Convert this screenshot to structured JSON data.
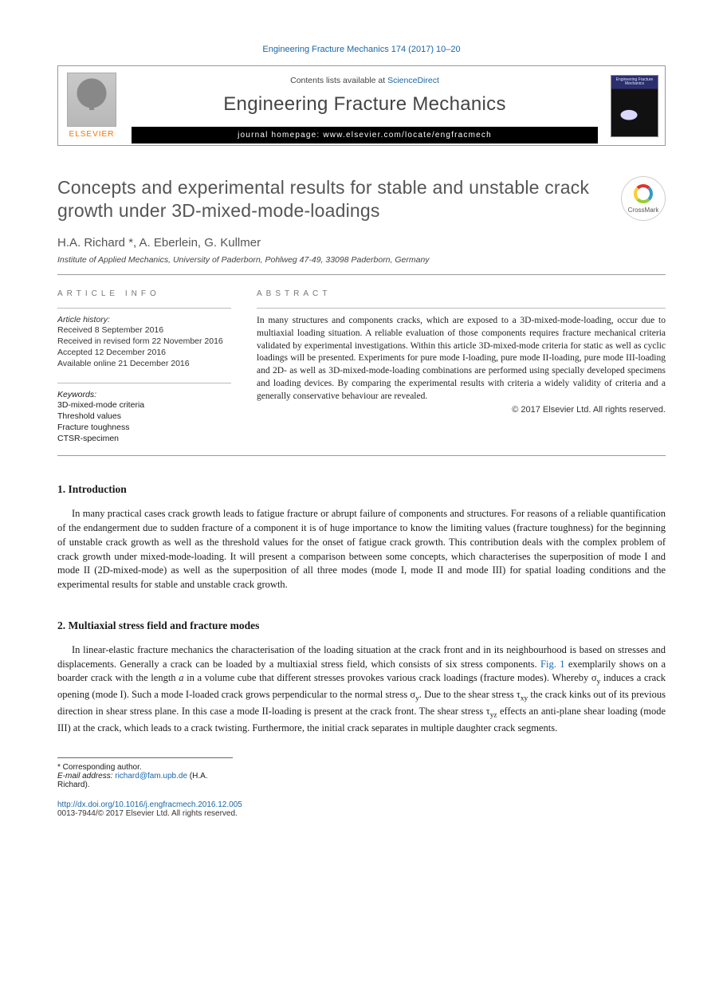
{
  "citation": "Engineering Fracture Mechanics 174 (2017) 10–20",
  "header": {
    "contents_prefix": "Contents lists available at ",
    "contents_link": "ScienceDirect",
    "journal": "Engineering Fracture Mechanics",
    "homepage_label": "journal homepage: ",
    "homepage_url": "www.elsevier.com/locate/engfracmech",
    "elsevier": "ELSEVIER",
    "cover_text": "Engineering Fracture Mechanics"
  },
  "title": "Concepts and experimental results for stable and unstable crack growth under 3D-mixed-mode-loadings",
  "crossmark": "CrossMark",
  "authors": "H.A. Richard *, A. Eberlein, G. Kullmer",
  "affiliation": "Institute of Applied Mechanics, University of Paderborn, Pohlweg 47-49, 33098 Paderborn, Germany",
  "info": {
    "head": "ARTICLE INFO",
    "history_label": "Article history:",
    "history": [
      "Received 8 September 2016",
      "Received in revised form 22 November 2016",
      "Accepted 12 December 2016",
      "Available online 21 December 2016"
    ],
    "keywords_label": "Keywords:",
    "keywords": [
      "3D-mixed-mode criteria",
      "Threshold values",
      "Fracture toughness",
      "CTSR-specimen"
    ]
  },
  "abstract": {
    "head": "ABSTRACT",
    "text": "In many structures and components cracks, which are exposed to a 3D-mixed-mode-loading, occur due to multiaxial loading situation. A reliable evaluation of those components requires fracture mechanical criteria validated by experimental investigations. Within this article 3D-mixed-mode criteria for static as well as cyclic loadings will be presented. Experiments for pure mode I-loading, pure mode II-loading, pure mode III-loading and 2D- as well as 3D-mixed-mode-loading combinations are performed using specially developed specimens and loading devices. By comparing the experimental results with criteria a widely validity of criteria and a generally conservative behaviour are revealed.",
    "copyright": "© 2017 Elsevier Ltd. All rights reserved."
  },
  "sections": {
    "s1": {
      "head": "1. Introduction",
      "p1": "In many practical cases crack growth leads to fatigue fracture or abrupt failure of components and structures. For reasons of a reliable quantification of the endangerment due to sudden fracture of a component it is of huge importance to know the limiting values (fracture toughness) for the beginning of unstable crack growth as well as the threshold values for the onset of fatigue crack growth. This contribution deals with the complex problem of crack growth under mixed-mode-loading. It will present a comparison between some concepts, which characterises the superposition of mode I and mode II (2D-mixed-mode) as well as the superposition of all three modes (mode I, mode II and mode III) for spatial loading conditions and the experimental results for stable and unstable crack growth."
    },
    "s2": {
      "head": "2. Multiaxial stress field and fracture modes",
      "p1a": "In linear-elastic fracture mechanics the characterisation of the loading situation at the crack front and in its neighbourhood is based on stresses and displacements. Generally a crack can be loaded by a multiaxial stress field, which consists of six stress components. ",
      "figref": "Fig. 1",
      "p1b": " exemplarily shows on a boarder crack with the length ",
      "var_a": "a",
      "p1c": " in a volume cube that different stresses provokes various crack loadings (fracture modes). Whereby σ",
      "sub_y1": "y",
      "p1d": " induces a crack opening (mode I). Such a mode I-loaded crack grows perpendicular to the normal stress σ",
      "sub_y2": "y",
      "p1e": ". Due to the shear stress τ",
      "sub_xy": "xy",
      "p1f": " the crack kinks out of its previous direction in shear stress plane. In this case a mode II-loading is present at the crack front. The shear stress τ",
      "sub_yz": "yz",
      "p1g": " effects an anti-plane shear loading (mode III) at the crack, which leads to a crack twisting. Furthermore, the initial crack separates in multiple daughter crack segments."
    }
  },
  "footnote": {
    "corr": "* Corresponding author.",
    "email_label": "E-mail address: ",
    "email": "richard@fam.upb.de",
    "email_suffix": " (H.A. Richard)."
  },
  "doi": {
    "url": "http://dx.doi.org/10.1016/j.engfracmech.2016.12.005",
    "issn_line": "0013-7944/© 2017 Elsevier Ltd. All rights reserved."
  },
  "colors": {
    "link": "#1966a8",
    "elsevier_orange": "#ff7300",
    "heading_gray": "#555555",
    "rule_gray": "#999999"
  }
}
